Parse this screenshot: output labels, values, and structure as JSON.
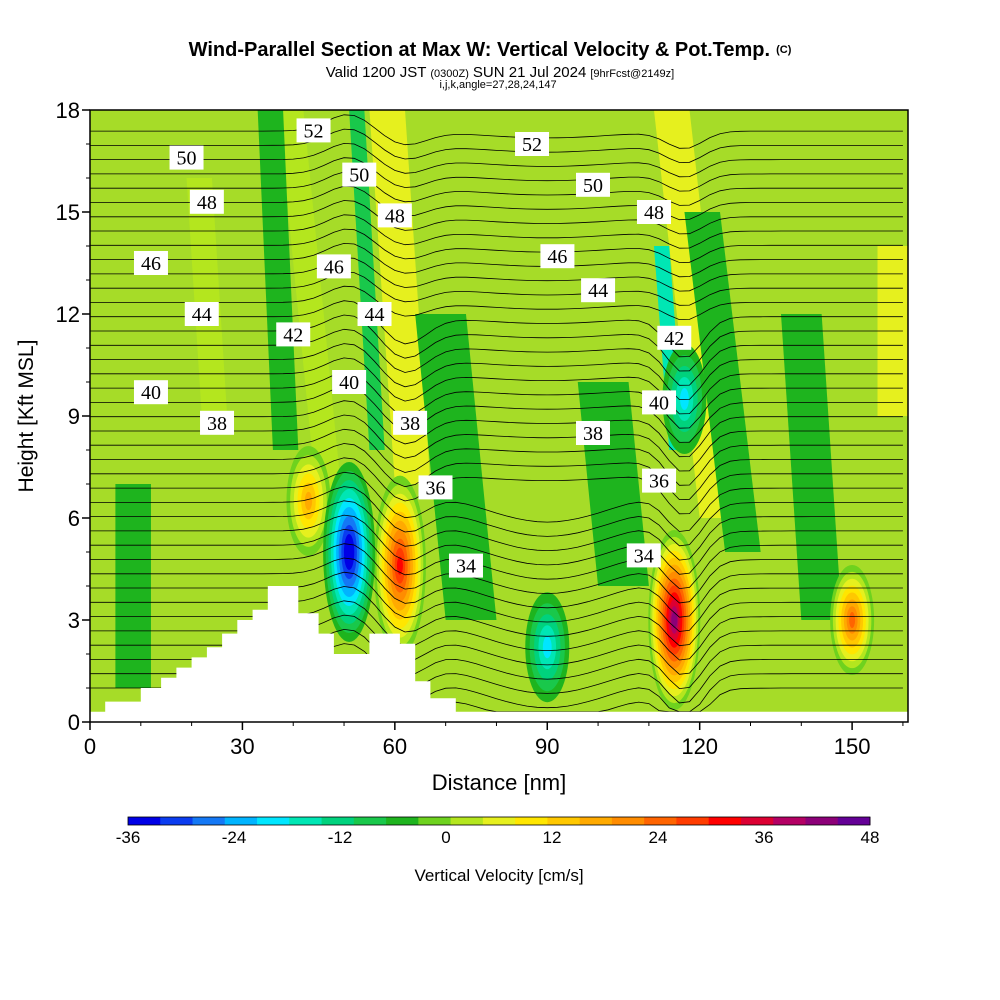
{
  "chart_data": {
    "type": "heatmap",
    "title": "Wind-Parallel Section at Max W: Vertical Velocity & Pot.Temp.",
    "title_mark": "(C)",
    "subtitle_parts": {
      "valid": "Valid 1200 JST",
      "utc": "(0300Z)",
      "date": "SUN 21 Jul 2024",
      "fcst": "[9hrFcst@2149z]"
    },
    "subtitle2": "i,j,k,angle=27,28,24,147",
    "xlabel": "Distance [nm]",
    "ylabel": "Height [Kft MSL]",
    "xlim": [
      0,
      161
    ],
    "ylim": [
      0,
      18
    ],
    "x_ticks": [
      "0",
      "30",
      "60",
      "90",
      "120",
      "150"
    ],
    "x_tick_values": [
      0,
      30,
      60,
      90,
      120,
      150
    ],
    "y_ticks": [
      "0",
      "3",
      "6",
      "9",
      "12",
      "15",
      "18"
    ],
    "y_tick_values": [
      0,
      3,
      6,
      9,
      12,
      15,
      18
    ],
    "colorbar": {
      "label": "Vertical Velocity [cm/s]",
      "min": -36,
      "max": 48,
      "step": 4,
      "tick_labels": [
        "-36",
        "-24",
        "-12",
        "0",
        "12",
        "24",
        "36",
        "48"
      ],
      "tick_values": [
        -36,
        -24,
        -12,
        0,
        12,
        24,
        36,
        48
      ],
      "colors": [
        "#0000e6",
        "#0a3cf0",
        "#1478f5",
        "#00b4ff",
        "#00e6ff",
        "#00e6b4",
        "#00d27d",
        "#19c84b",
        "#1eb41e",
        "#6ed21e",
        "#b4e61e",
        "#e6f01e",
        "#ffe600",
        "#ffc800",
        "#ffaa00",
        "#ff8c00",
        "#ff6400",
        "#ff3c00",
        "#ff0000",
        "#dc0032",
        "#b40064",
        "#8c0078",
        "#640096"
      ]
    },
    "theta_contour_labels": [
      {
        "text": "50",
        "x": 19,
        "y": 16.6
      },
      {
        "text": "48",
        "x": 23,
        "y": 15.3
      },
      {
        "text": "46",
        "x": 12,
        "y": 13.5
      },
      {
        "text": "44",
        "x": 22,
        "y": 12.0
      },
      {
        "text": "42",
        "x": 40,
        "y": 11.4
      },
      {
        "text": "40",
        "x": 12,
        "y": 9.7
      },
      {
        "text": "38",
        "x": 25,
        "y": 8.8
      },
      {
        "text": "52",
        "x": 44,
        "y": 17.4
      },
      {
        "text": "50",
        "x": 53,
        "y": 16.1
      },
      {
        "text": "46",
        "x": 48,
        "y": 13.4
      },
      {
        "text": "48",
        "x": 60,
        "y": 14.9
      },
      {
        "text": "44",
        "x": 56,
        "y": 12.0
      },
      {
        "text": "40",
        "x": 51,
        "y": 10.0
      },
      {
        "text": "38",
        "x": 63,
        "y": 8.8
      },
      {
        "text": "36",
        "x": 68,
        "y": 6.9
      },
      {
        "text": "34",
        "x": 74,
        "y": 4.6
      },
      {
        "text": "52",
        "x": 87,
        "y": 17.0
      },
      {
        "text": "50",
        "x": 99,
        "y": 15.8
      },
      {
        "text": "46",
        "x": 92,
        "y": 13.7
      },
      {
        "text": "44",
        "x": 100,
        "y": 12.7
      },
      {
        "text": "38",
        "x": 99,
        "y": 8.5
      },
      {
        "text": "48",
        "x": 111,
        "y": 15.0
      },
      {
        "text": "42",
        "x": 115,
        "y": 11.3
      },
      {
        "text": "40",
        "x": 112,
        "y": 9.4
      },
      {
        "text": "36",
        "x": 112,
        "y": 7.1
      },
      {
        "text": "34",
        "x": 109,
        "y": 4.9
      }
    ],
    "updraft_cores_cm_s": [
      {
        "x": 61,
        "y": 4.6,
        "peak": 34
      },
      {
        "x": 115,
        "y": 3.0,
        "peak": 46
      },
      {
        "x": 150,
        "y": 3.0,
        "peak": 26
      },
      {
        "x": 43,
        "y": 6.5,
        "peak": 18
      }
    ],
    "downdraft_cores_cm_s": [
      {
        "x": 51,
        "y": 5.0,
        "peak": -34
      },
      {
        "x": 90,
        "y": 2.2,
        "peak": -14
      },
      {
        "x": 117,
        "y": 9.5,
        "peak": -14
      }
    ],
    "terrain_kft": [
      [
        0,
        0.3
      ],
      [
        3,
        0.6
      ],
      [
        10,
        1.0
      ],
      [
        14,
        1.3
      ],
      [
        17,
        1.6
      ],
      [
        20,
        1.9
      ],
      [
        23,
        2.2
      ],
      [
        26,
        2.6
      ],
      [
        29,
        3.0
      ],
      [
        32,
        3.3
      ],
      [
        35,
        4.0
      ],
      [
        41,
        3.2
      ],
      [
        45,
        2.6
      ],
      [
        48,
        2.0
      ],
      [
        54,
        2.0
      ],
      [
        55,
        2.6
      ],
      [
        60,
        2.6
      ],
      [
        61,
        2.3
      ],
      [
        64,
        1.2
      ],
      [
        67,
        0.7
      ],
      [
        72,
        0.3
      ],
      [
        161,
        0.3
      ]
    ]
  }
}
